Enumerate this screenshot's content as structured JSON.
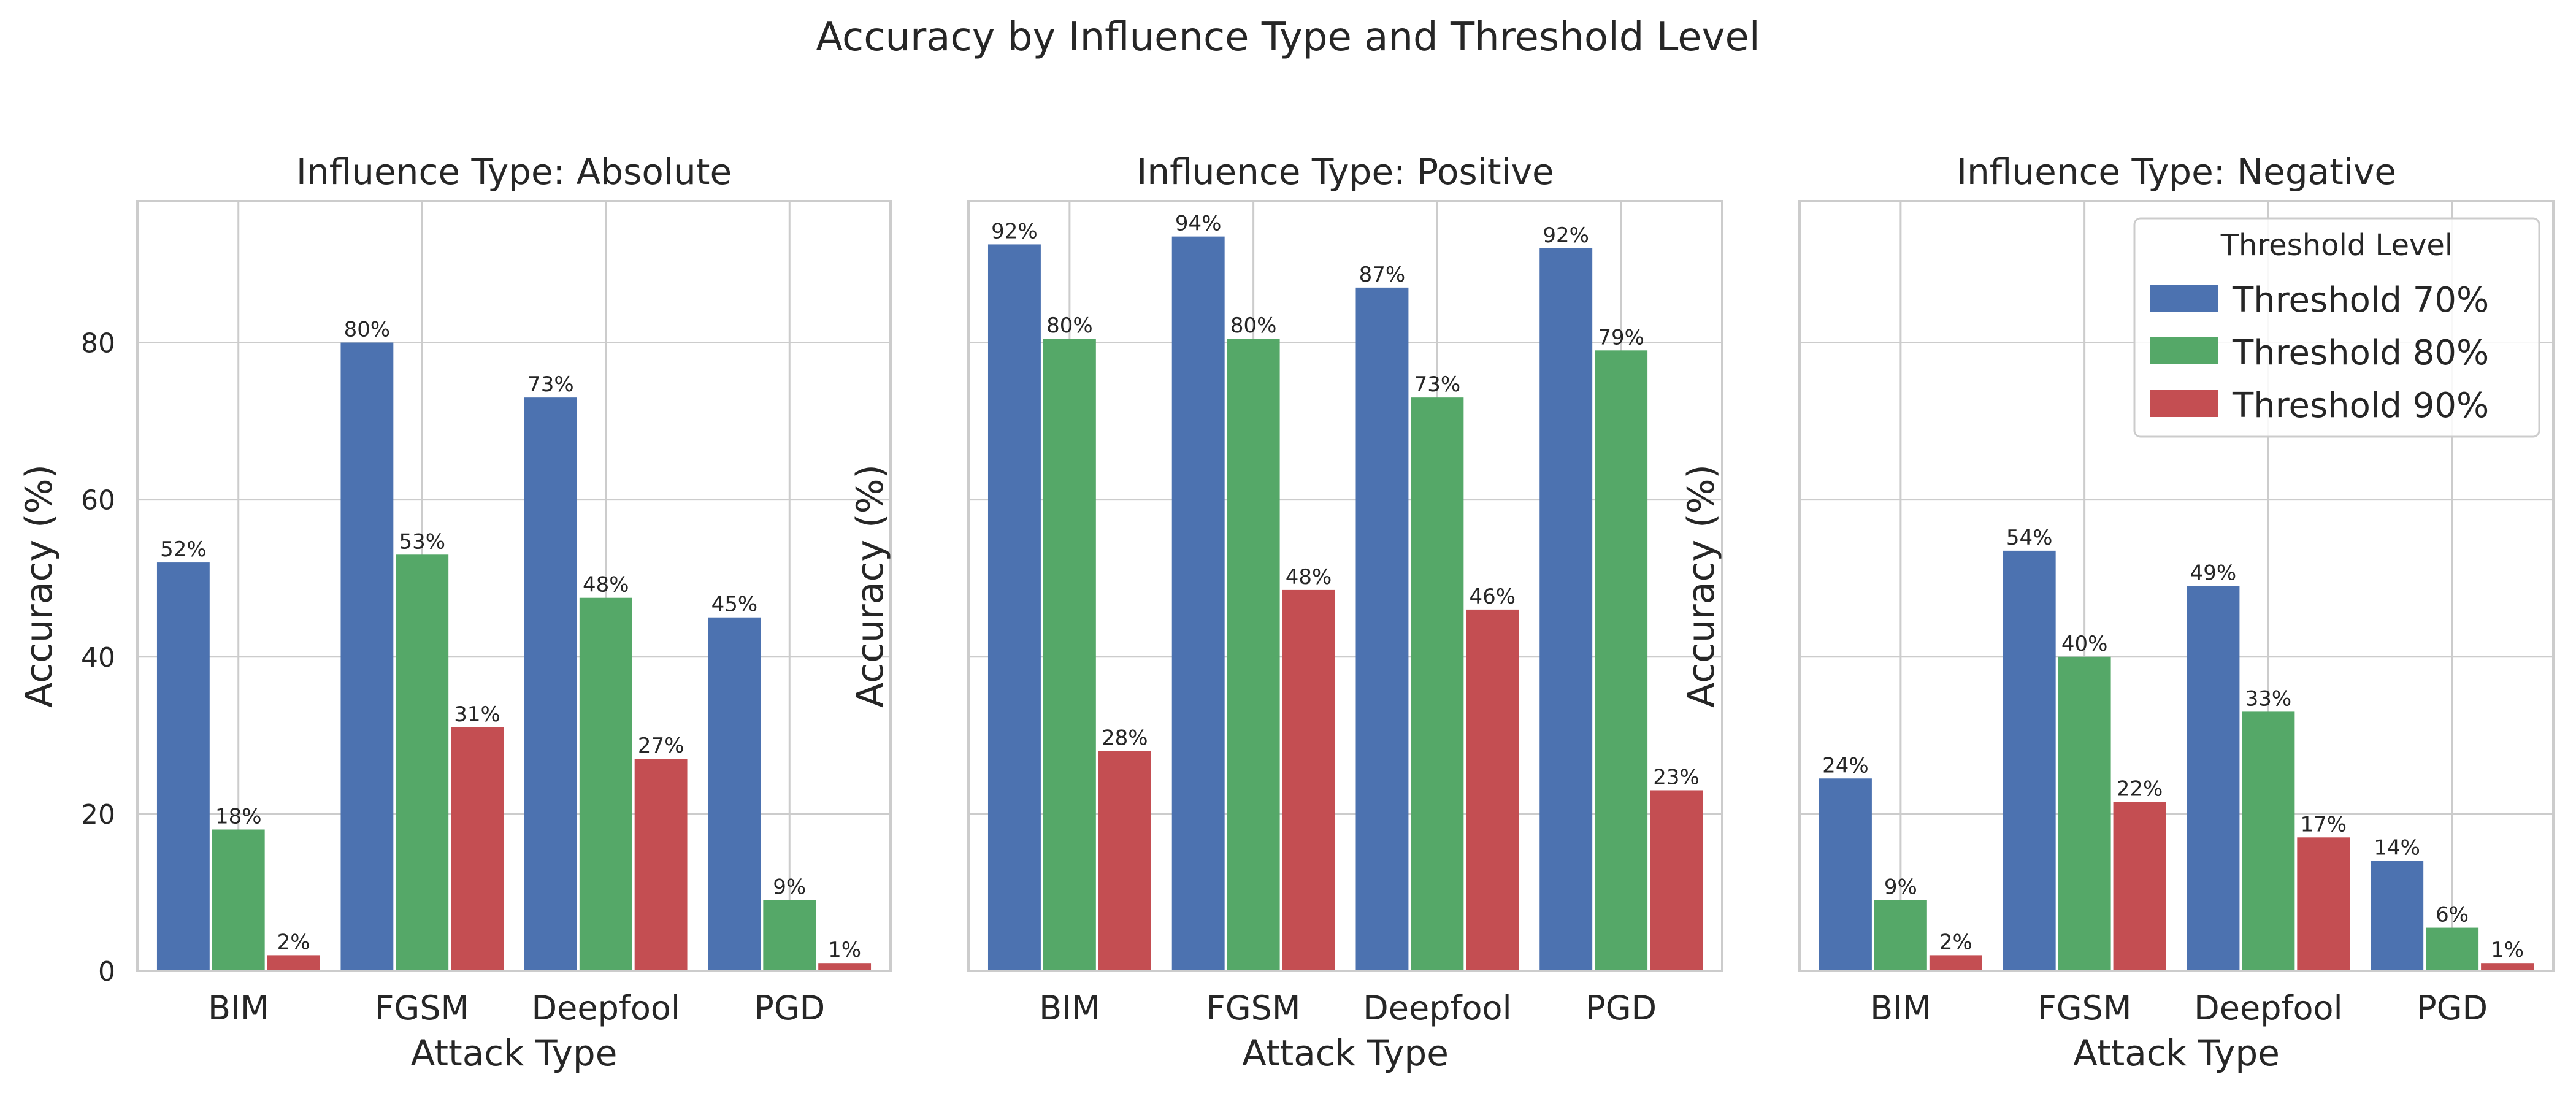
{
  "figure": {
    "title": "Accuracy by Influence Type and Threshold Level"
  },
  "legend": {
    "title": "Threshold Level",
    "entries": [
      "Threshold 70%",
      "Threshold 80%",
      "Threshold 90%"
    ],
    "placement": "top-right of third panel"
  },
  "colors": {
    "series": [
      "#4c72b0",
      "#55a868",
      "#c44e52"
    ],
    "grid": "#cccccc",
    "background": "#ffffff"
  },
  "chart_data": [
    {
      "type": "bar",
      "title": "Influence Type: Absolute",
      "xlabel": "Attack Type",
      "ylabel": "Accuracy (%)",
      "categories": [
        "BIM",
        "FGSM",
        "Deepfool",
        "PGD"
      ],
      "ylim": [
        0,
        98
      ],
      "yticks": [
        0,
        20,
        40,
        60,
        80
      ],
      "show_ytick_labels": true,
      "grid": true,
      "series": [
        {
          "name": "Threshold 70%",
          "values": [
            52,
            80,
            73,
            45
          ],
          "labels": [
            "52%",
            "80%",
            "73%",
            "45%"
          ]
        },
        {
          "name": "Threshold 80%",
          "values": [
            18,
            53,
            47.5,
            9
          ],
          "labels": [
            "18%",
            "53%",
            "48%",
            "9%"
          ]
        },
        {
          "name": "Threshold 90%",
          "values": [
            2,
            31,
            27,
            1
          ],
          "labels": [
            "2%",
            "31%",
            "27%",
            "1%"
          ]
        }
      ]
    },
    {
      "type": "bar",
      "title": "Influence Type: Positive",
      "xlabel": "Attack Type",
      "ylabel": "Accuracy (%)",
      "categories": [
        "BIM",
        "FGSM",
        "Deepfool",
        "PGD"
      ],
      "ylim": [
        0,
        98
      ],
      "yticks": [
        0,
        20,
        40,
        60,
        80
      ],
      "show_ytick_labels": false,
      "grid": true,
      "series": [
        {
          "name": "Threshold 70%",
          "values": [
            92.5,
            93.5,
            87,
            92
          ],
          "labels": [
            "92%",
            "94%",
            "87%",
            "92%"
          ]
        },
        {
          "name": "Threshold 80%",
          "values": [
            80.5,
            80.5,
            73,
            79
          ],
          "labels": [
            "80%",
            "80%",
            "73%",
            "79%"
          ]
        },
        {
          "name": "Threshold 90%",
          "values": [
            28,
            48.5,
            46,
            23
          ],
          "labels": [
            "28%",
            "48%",
            "46%",
            "23%"
          ]
        }
      ]
    },
    {
      "type": "bar",
      "title": "Influence Type: Negative",
      "xlabel": "Attack Type",
      "ylabel": "Accuracy (%)",
      "categories": [
        "BIM",
        "FGSM",
        "Deepfool",
        "PGD"
      ],
      "ylim": [
        0,
        98
      ],
      "yticks": [
        0,
        20,
        40,
        60,
        80
      ],
      "show_ytick_labels": false,
      "grid": true,
      "series": [
        {
          "name": "Threshold 70%",
          "values": [
            24.5,
            53.5,
            49,
            14
          ],
          "labels": [
            "24%",
            "54%",
            "49%",
            "14%"
          ]
        },
        {
          "name": "Threshold 80%",
          "values": [
            9,
            40,
            33,
            5.5
          ],
          "labels": [
            "9%",
            "40%",
            "33%",
            "6%"
          ]
        },
        {
          "name": "Threshold 90%",
          "values": [
            2,
            21.5,
            17,
            1
          ],
          "labels": [
            "2%",
            "22%",
            "17%",
            "1%"
          ]
        }
      ]
    }
  ]
}
